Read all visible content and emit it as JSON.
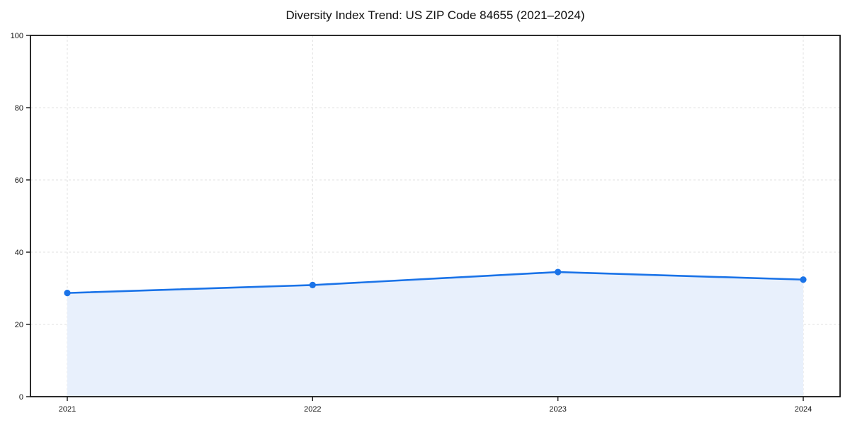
{
  "chart_data": {
    "type": "area",
    "title": "Diversity Index Trend: US ZIP Code 84655 (2021–2024)",
    "xlabel": "",
    "ylabel": "",
    "categories": [
      "2021",
      "2022",
      "2023",
      "2024"
    ],
    "series": [
      {
        "name": "Diversity Index",
        "values": [
          28.7,
          30.9,
          34.5,
          32.4
        ]
      }
    ],
    "ylim": [
      0,
      100
    ],
    "yticks": [
      0,
      20,
      40,
      60,
      80,
      100
    ],
    "grid": true,
    "grid_style": "dashed",
    "legend_position": "none",
    "colors": {
      "line": "#1a73e8",
      "marker": "#1a73e8",
      "fill": "#e8f0fc",
      "grid": "#e2e2e2",
      "spine": "#141414",
      "text": "#141414",
      "title": "#111111",
      "background": "#ffffff"
    }
  }
}
